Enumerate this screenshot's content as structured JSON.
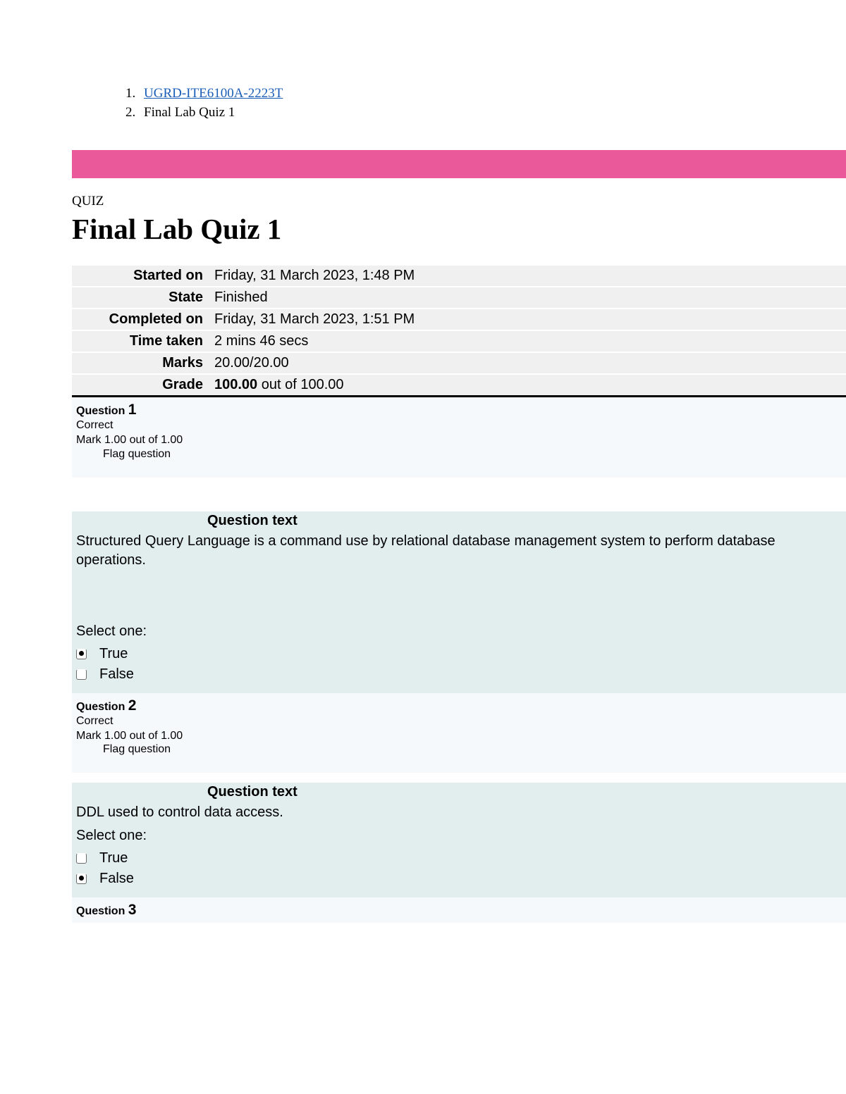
{
  "breadcrumb": {
    "items": [
      {
        "num": "1.",
        "text": "UGRD-ITE6100A-2223T",
        "link": true
      },
      {
        "num": "2.",
        "text": "Final Lab Quiz 1",
        "link": false
      }
    ]
  },
  "colors": {
    "pink_bar": "#ea5a9a",
    "question_bg": "#e2eeee",
    "header_bg": "#f6f9fc",
    "summary_bg": "#f0f0f0",
    "link_color": "#1a5eb8"
  },
  "section_label": "QUIZ",
  "page_title": "Final Lab Quiz 1",
  "summary": {
    "rows": [
      {
        "label": "Started on",
        "value": "Friday, 31 March 2023, 1:48 PM"
      },
      {
        "label": "State",
        "value": "Finished"
      },
      {
        "label": "Completed on",
        "value": "Friday, 31 March 2023, 1:51 PM"
      },
      {
        "label": "Time taken",
        "value": "2 mins 46 secs"
      },
      {
        "label": "Marks",
        "value": "20.00/20.00"
      }
    ],
    "grade_label": "Grade",
    "grade_bold": "100.00",
    "grade_rest": " out of 100.00"
  },
  "labels": {
    "question": "Question",
    "correct": "Correct",
    "mark": "Mark 1.00 out of 1.00",
    "flag": "Flag question",
    "question_text": "Question text",
    "select_one": "Select one:",
    "true": "True",
    "false": "False"
  },
  "questions": [
    {
      "number": "1",
      "text": "Structured Query Language is a command use by relational database management system to perform database operations.",
      "selected": "true",
      "large_gap": true
    },
    {
      "number": "2",
      "text": "DDL used to control data access.",
      "selected": "false",
      "large_gap": false
    },
    {
      "number": "3",
      "text": "",
      "selected": "",
      "header_only": true
    }
  ]
}
